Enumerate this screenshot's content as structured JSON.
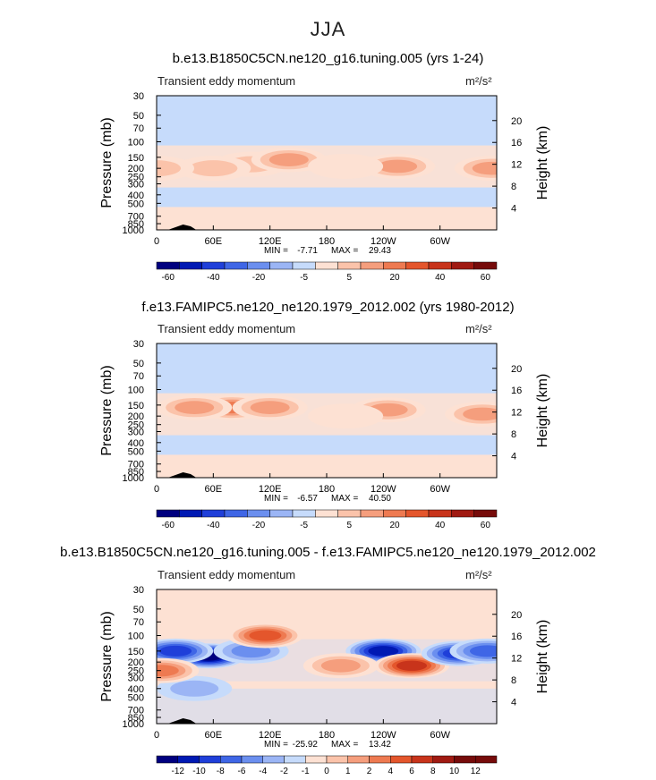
{
  "page_title": "JJA",
  "colors": {
    "neg": [
      "#00007f",
      "#0019b3",
      "#1f3fd9",
      "#3f66e6",
      "#6b8fef",
      "#9bb5f5",
      "#c6dbfb"
    ],
    "pos": [
      "#fde1d3",
      "#fbc3aa",
      "#f59e7d",
      "#ee7a51",
      "#e4562c",
      "#c8341b",
      "#a01a12",
      "#760b0a"
    ]
  },
  "chart_data": [
    {
      "type": "contour",
      "title": "b.e13.B1850C5CN.ne120_g16.tuning.005 (yrs 1-24)",
      "variable": "Transient eddy momentum",
      "units": "m²/s²",
      "ylabel_left": "Pressure (mb)",
      "ylabel_right": "Height (km)",
      "y_ticks": [
        "30",
        "50",
        "70",
        "100",
        "150",
        "200",
        "250",
        "300",
        "400",
        "500",
        "700",
        "850",
        "1000"
      ],
      "height_ticks": [
        "20",
        "16",
        "12",
        "8",
        "4"
      ],
      "x_ticks": [
        "0",
        "60E",
        "120E",
        "180",
        "120W",
        "60W"
      ],
      "min_label": "MIN =",
      "min_value": "-7.71",
      "max_label": "MAX =",
      "max_value": "29.43",
      "colorbar_labels": [
        "-60",
        "-40",
        "-20",
        "-5",
        "5",
        "20",
        "40",
        "60"
      ],
      "features": [
        {
          "lon": 100,
          "p": 180,
          "level": 2
        },
        {
          "lon": 140,
          "p": 160,
          "level": 3
        },
        {
          "lon": 60,
          "p": 200,
          "level": 2
        },
        {
          "lon": 0,
          "p": 200,
          "level": 2
        },
        {
          "lon": 255,
          "p": 190,
          "level": 3
        },
        {
          "lon": 355,
          "p": 200,
          "level": 3
        },
        {
          "lon": 200,
          "p": 190,
          "level": 1
        }
      ]
    },
    {
      "type": "contour",
      "title": "f.e13.FAMIPC5.ne120_ne120.1979_2012.002 (yrs 1980-2012)",
      "variable": "Transient eddy momentum",
      "units": "m²/s²",
      "ylabel_left": "Pressure (mb)",
      "ylabel_right": "Height (km)",
      "y_ticks": [
        "30",
        "50",
        "70",
        "100",
        "150",
        "200",
        "250",
        "300",
        "400",
        "500",
        "700",
        "850",
        "1000"
      ],
      "height_ticks": [
        "20",
        "16",
        "12",
        "8",
        "4"
      ],
      "x_ticks": [
        "0",
        "60E",
        "120E",
        "180",
        "120W",
        "60W"
      ],
      "min_label": "MIN =",
      "min_value": "-6.57",
      "max_label": "MAX =",
      "max_value": "40.50",
      "colorbar_labels": [
        "-60",
        "-40",
        "-20",
        "-5",
        "5",
        "20",
        "40",
        "60"
      ],
      "features": [
        {
          "lon": 80,
          "p": 160,
          "level": 4
        },
        {
          "lon": 40,
          "p": 160,
          "level": 3
        },
        {
          "lon": 120,
          "p": 160,
          "level": 3
        },
        {
          "lon": 245,
          "p": 170,
          "level": 3
        },
        {
          "lon": 345,
          "p": 190,
          "level": 3
        },
        {
          "lon": 200,
          "p": 200,
          "level": 1
        }
      ]
    },
    {
      "type": "contour",
      "title": "b.e13.B1850C5CN.ne120_g16.tuning.005 - f.e13.FAMIPC5.ne120_ne120.1979_2012.002",
      "variable": "Transient eddy momentum",
      "units": "m²/s²",
      "ylabel_left": "Pressure (mb)",
      "ylabel_right": "Height (km)",
      "y_ticks": [
        "30",
        "50",
        "70",
        "100",
        "150",
        "200",
        "250",
        "300",
        "400",
        "500",
        "700",
        "850",
        "1000"
      ],
      "height_ticks": [
        "20",
        "16",
        "12",
        "8",
        "4"
      ],
      "x_ticks": [
        "0",
        "60E",
        "120E",
        "180",
        "120W",
        "60W"
      ],
      "min_label": "MIN =",
      "min_value": "-25.92",
      "max_label": "MAX =",
      "max_value": "13.42",
      "colorbar_labels": [
        "-12",
        "-10",
        "-8",
        "-6",
        "-4",
        "-2",
        "-1",
        "0",
        "1",
        "2",
        "4",
        "6",
        "8",
        "10",
        "12"
      ],
      "features": [
        {
          "lon": 55,
          "p": 170,
          "level": -7
        },
        {
          "lon": 20,
          "p": 150,
          "level": -5
        },
        {
          "lon": 100,
          "p": 150,
          "level": -3
        },
        {
          "lon": 115,
          "p": 100,
          "level": 5
        },
        {
          "lon": 240,
          "p": 150,
          "level": -6
        },
        {
          "lon": 270,
          "p": 220,
          "level": 6
        },
        {
          "lon": 320,
          "p": 160,
          "level": -5
        },
        {
          "lon": 350,
          "p": 150,
          "level": -4
        },
        {
          "lon": 195,
          "p": 220,
          "level": 3
        },
        {
          "lon": 40,
          "p": 400,
          "level": -2
        },
        {
          "lon": 5,
          "p": 250,
          "level": 4
        }
      ]
    }
  ]
}
